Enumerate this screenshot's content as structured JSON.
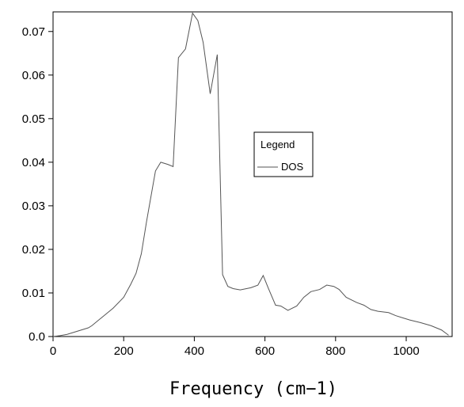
{
  "chart_data": {
    "type": "line",
    "title": "",
    "xlabel": "Frequency (cm−1)",
    "ylabel": "",
    "xlim": [
      0,
      1130
    ],
    "ylim": [
      0,
      0.0745
    ],
    "x_ticks": [
      0,
      200,
      400,
      600,
      800,
      1000
    ],
    "x_tick_labels": [
      "0",
      "200",
      "400",
      "600",
      "800",
      "1000"
    ],
    "y_ticks": [
      0,
      0.01,
      0.02,
      0.03,
      0.04,
      0.05,
      0.06,
      0.07
    ],
    "y_tick_labels": [
      "0.0",
      "0.01",
      "0.02",
      "0.03",
      "0.04",
      "0.05",
      "0.06",
      "0.07"
    ],
    "grid": false,
    "legend": {
      "title": "Legend",
      "placement": "center-right"
    },
    "series": [
      {
        "name": "DOS",
        "color": "#555555",
        "x": [
          0,
          20,
          40,
          60,
          80,
          100,
          110,
          140,
          170,
          200,
          220,
          235,
          250,
          265,
          290,
          305,
          325,
          340,
          355,
          375,
          395,
          410,
          425,
          445,
          465,
          480,
          495,
          510,
          530,
          560,
          580,
          595,
          610,
          630,
          645,
          665,
          690,
          710,
          730,
          755,
          775,
          795,
          810,
          830,
          860,
          880,
          900,
          920,
          950,
          970,
          990,
          1010,
          1040,
          1070,
          1100,
          1120
        ],
        "y": [
          0.0,
          0.0002,
          0.0005,
          0.001,
          0.0015,
          0.002,
          0.0025,
          0.0045,
          0.0065,
          0.009,
          0.012,
          0.0145,
          0.019,
          0.0265,
          0.038,
          0.04,
          0.0395,
          0.039,
          0.064,
          0.066,
          0.0742,
          0.0725,
          0.0675,
          0.0557,
          0.0647,
          0.0142,
          0.0115,
          0.011,
          0.0107,
          0.0112,
          0.0118,
          0.014,
          0.011,
          0.0072,
          0.007,
          0.006,
          0.007,
          0.009,
          0.0103,
          0.0108,
          0.0118,
          0.0115,
          0.0108,
          0.009,
          0.0078,
          0.0072,
          0.0062,
          0.0058,
          0.0055,
          0.0048,
          0.0043,
          0.0038,
          0.0032,
          0.0025,
          0.0015,
          0.0003
        ]
      }
    ]
  }
}
